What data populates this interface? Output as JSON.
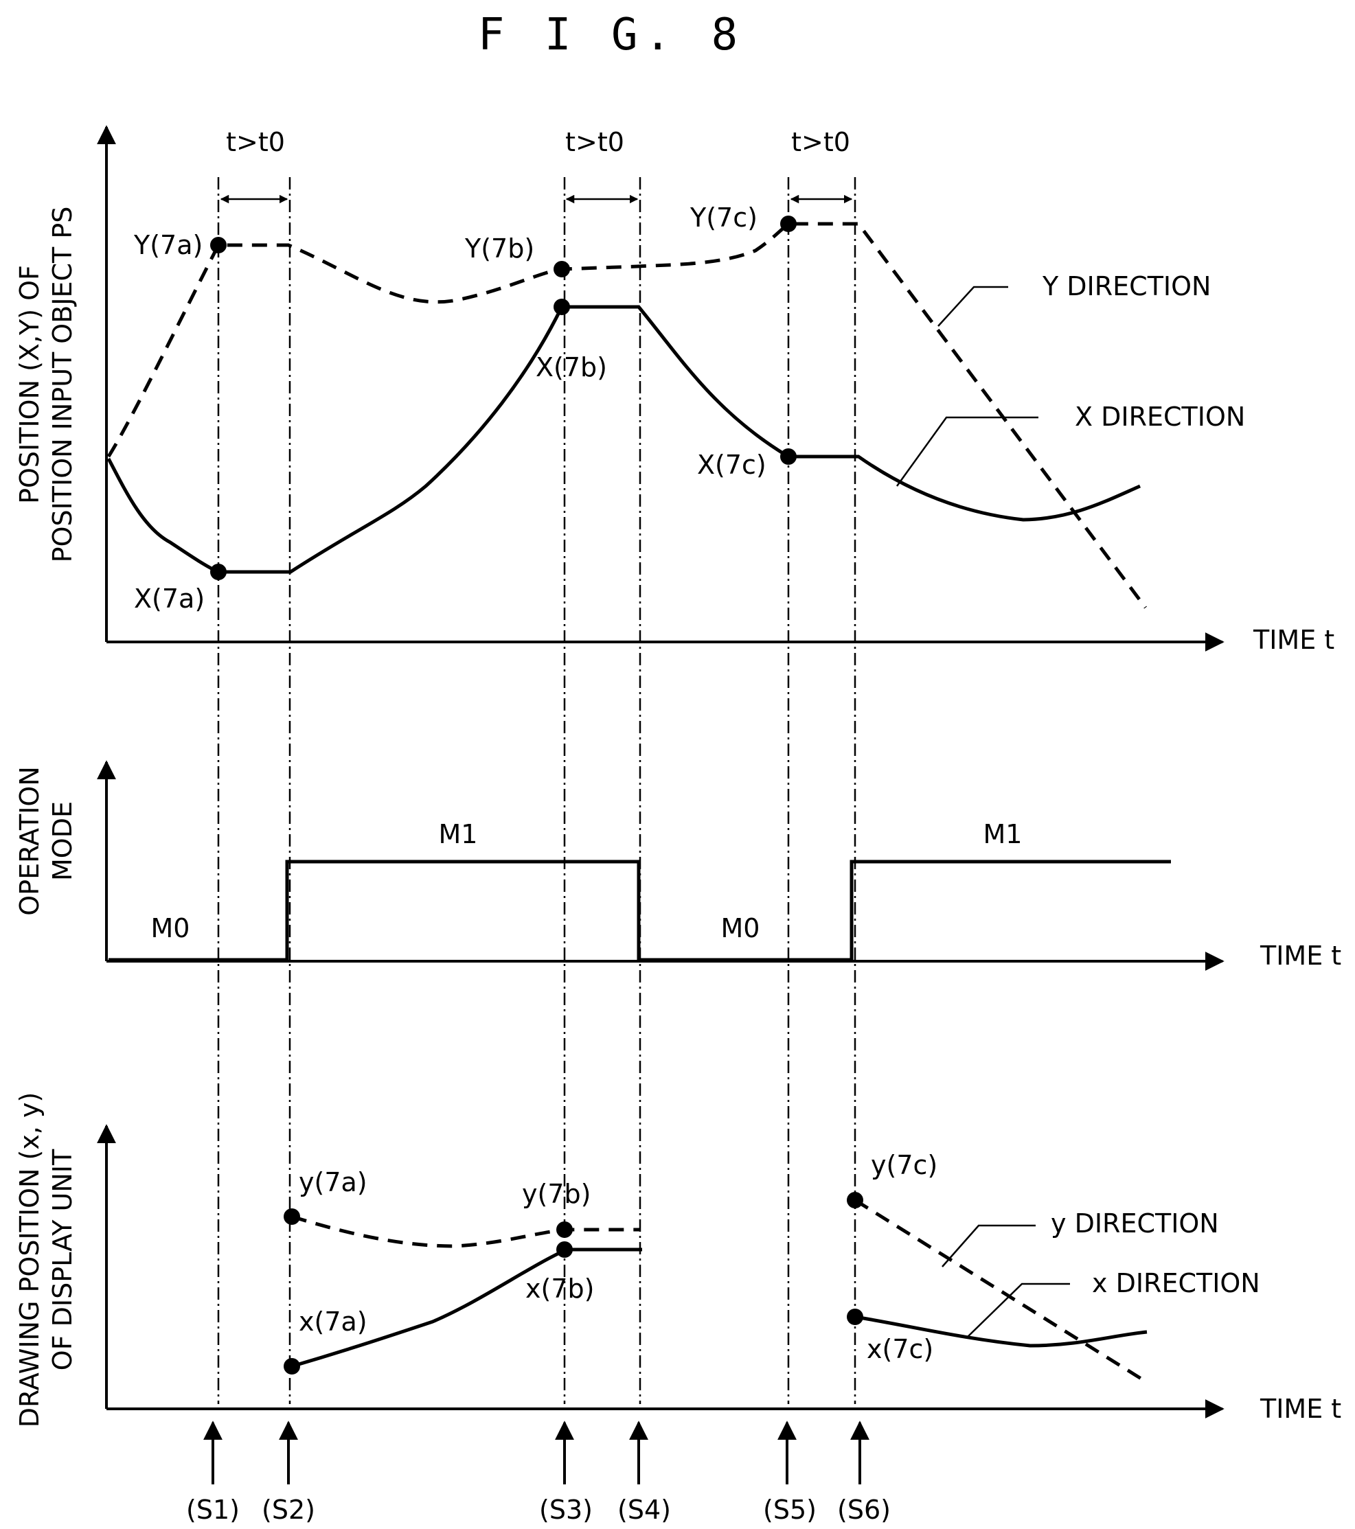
{
  "figure_title": "F I G. 8",
  "panel1": {
    "y_axis_label_line1": "POSITION (X,Y) OF",
    "y_axis_label_line2": "POSITION INPUT OBJECT PS",
    "x_axis_label": "TIME t",
    "interval_labels": [
      "t>t0",
      "t>t0",
      "t>t0"
    ],
    "legend_y": "Y DIRECTION",
    "legend_x": "X DIRECTION",
    "points": {
      "Y7a": "Y(7a)",
      "Y7b": "Y(7b)",
      "Y7c": "Y(7c)",
      "X7a": "X(7a)",
      "X7b": "X(7b)",
      "X7c": "X(7c)"
    }
  },
  "panel2": {
    "y_axis_label_line1": "OPERATION",
    "y_axis_label_line2": "MODE",
    "x_axis_label": "TIME t",
    "modes": [
      "M0",
      "M1",
      "M0",
      "M1"
    ]
  },
  "panel3": {
    "y_axis_label_line1": "DRAWING POSITION (x, y)",
    "y_axis_label_line2": "OF DISPLAY UNIT",
    "x_axis_label": "TIME t",
    "legend_y": "y DIRECTION",
    "legend_x": "x DIRECTION",
    "points": {
      "y7a": "y(7a)",
      "y7b": "y(7b)",
      "y7c": "y(7c)",
      "x7a": "x(7a)",
      "x7b": "x(7b)",
      "x7c": "x(7c)"
    }
  },
  "steps": [
    "(S1)",
    "(S2)",
    "(S3)",
    "(S4)",
    "(S5)",
    "(S6)"
  ]
}
